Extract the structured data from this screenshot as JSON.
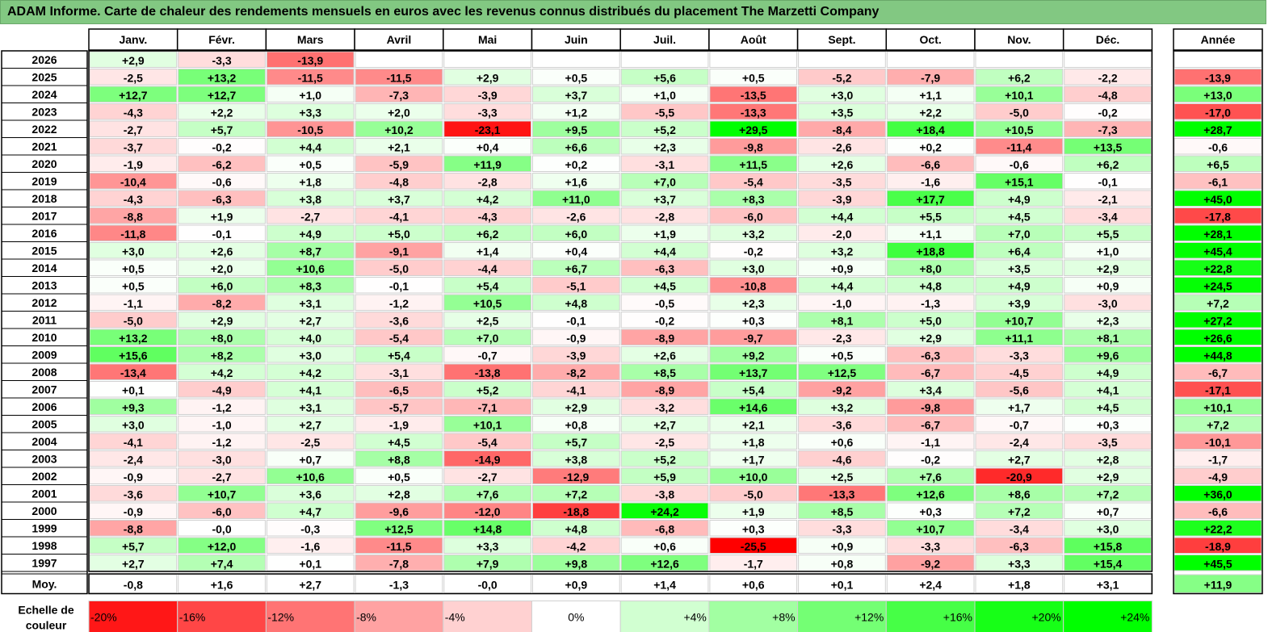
{
  "title": "ADAM Informe. Carte de chaleur des rendements mensuels en euros avec les revenus connus distribués du placement The Marzetti Company",
  "chart_data": {
    "type": "heatmap",
    "columns": [
      "Janv.",
      "Févr.",
      "Mars",
      "Avril",
      "Mai",
      "Juin",
      "Juil.",
      "Août",
      "Sept.",
      "Oct.",
      "Nov.",
      "Déc."
    ],
    "year_column": "Année",
    "rows": [
      {
        "year": "2026",
        "months": [
          "+2,9",
          "-3,3",
          "-13,9",
          "",
          "",
          "",
          "",
          "",
          "",
          "",
          "",
          ""
        ],
        "total": ""
      },
      {
        "year": "2025",
        "months": [
          "-2,5",
          "+13,2",
          "-11,5",
          "-11,5",
          "+2,9",
          "+0,5",
          "+5,6",
          "+0,5",
          "-5,2",
          "-7,9",
          "+6,2",
          "-2,2"
        ],
        "total": "-13,9"
      },
      {
        "year": "2024",
        "months": [
          "+12,7",
          "+12,7",
          "+1,0",
          "-7,3",
          "-3,9",
          "+3,7",
          "+1,0",
          "-13,5",
          "+3,0",
          "+1,1",
          "+10,1",
          "-4,8"
        ],
        "total": "+13,0"
      },
      {
        "year": "2023",
        "months": [
          "-4,3",
          "+2,2",
          "+3,3",
          "+2,0",
          "-3,3",
          "+1,2",
          "-5,5",
          "-13,3",
          "+3,5",
          "+2,2",
          "-5,0",
          "-0,2"
        ],
        "total": "-17,0"
      },
      {
        "year": "2022",
        "months": [
          "-2,7",
          "+5,7",
          "-10,5",
          "+10,2",
          "-23,1",
          "+9,5",
          "+5,2",
          "+29,5",
          "-8,4",
          "+18,4",
          "+10,5",
          "-7,3"
        ],
        "total": "+28,7"
      },
      {
        "year": "2021",
        "months": [
          "-3,7",
          "-0,2",
          "+4,4",
          "+2,1",
          "+0,4",
          "+6,6",
          "+2,3",
          "-9,8",
          "-2,6",
          "+0,2",
          "-11,4",
          "+13,5"
        ],
        "total": "-0,6"
      },
      {
        "year": "2020",
        "months": [
          "-1,9",
          "-6,2",
          "+0,5",
          "-5,9",
          "+11,9",
          "+0,2",
          "-3,1",
          "+11,5",
          "+2,6",
          "-6,6",
          "-0,6",
          "+6,2"
        ],
        "total": "+6,5"
      },
      {
        "year": "2019",
        "months": [
          "-10,4",
          "-0,6",
          "+1,8",
          "-4,8",
          "-2,8",
          "+1,6",
          "+7,0",
          "-5,4",
          "-3,5",
          "-1,6",
          "+15,1",
          "-0,1"
        ],
        "total": "-6,1"
      },
      {
        "year": "2018",
        "months": [
          "-4,3",
          "-6,3",
          "+3,8",
          "+3,7",
          "+4,2",
          "+11,0",
          "+3,7",
          "+8,3",
          "-3,9",
          "+17,7",
          "+4,9",
          "-2,1"
        ],
        "total": "+45,0"
      },
      {
        "year": "2017",
        "months": [
          "-8,8",
          "+1,9",
          "-2,7",
          "-4,1",
          "-4,3",
          "-2,6",
          "-2,8",
          "-6,0",
          "+4,4",
          "+5,5",
          "+4,5",
          "-3,4"
        ],
        "total": "-17,8"
      },
      {
        "year": "2016",
        "months": [
          "-11,8",
          "-0,1",
          "+4,9",
          "+5,0",
          "+6,2",
          "+6,0",
          "+1,9",
          "+3,2",
          "-2,0",
          "+1,1",
          "+7,0",
          "+5,5"
        ],
        "total": "+28,1"
      },
      {
        "year": "2015",
        "months": [
          "+3,0",
          "+2,6",
          "+8,7",
          "-9,1",
          "+1,4",
          "+0,4",
          "+4,4",
          "-0,2",
          "+3,2",
          "+18,8",
          "+6,4",
          "+1,0"
        ],
        "total": "+45,4"
      },
      {
        "year": "2014",
        "months": [
          "+0,5",
          "+2,0",
          "+10,6",
          "-5,0",
          "-4,4",
          "+6,7",
          "-6,3",
          "+3,0",
          "+0,9",
          "+8,0",
          "+3,5",
          "+2,9"
        ],
        "total": "+22,8"
      },
      {
        "year": "2013",
        "months": [
          "+0,5",
          "+6,0",
          "+8,3",
          "-0,1",
          "+5,4",
          "-5,1",
          "+4,5",
          "-10,8",
          "+4,4",
          "+4,8",
          "+4,9",
          "+0,9"
        ],
        "total": "+24,5"
      },
      {
        "year": "2012",
        "months": [
          "-1,1",
          "-8,2",
          "+3,1",
          "-1,2",
          "+10,5",
          "+4,8",
          "-0,5",
          "+2,3",
          "-1,0",
          "-1,3",
          "+3,9",
          "-3,0"
        ],
        "total": "+7,2"
      },
      {
        "year": "2011",
        "months": [
          "-5,0",
          "+2,9",
          "+2,7",
          "-3,6",
          "+2,5",
          "-0,1",
          "-0,2",
          "+0,3",
          "+8,1",
          "+5,0",
          "+10,7",
          "+2,3"
        ],
        "total": "+27,2"
      },
      {
        "year": "2010",
        "months": [
          "+13,2",
          "+8,0",
          "+4,0",
          "-5,4",
          "+7,0",
          "-0,9",
          "-8,9",
          "-9,7",
          "-2,3",
          "+2,9",
          "+11,1",
          "+8,1"
        ],
        "total": "+26,6"
      },
      {
        "year": "2009",
        "months": [
          "+15,6",
          "+8,2",
          "+3,0",
          "+5,4",
          "-0,7",
          "-3,9",
          "+2,6",
          "+9,2",
          "+0,5",
          "-6,3",
          "-3,3",
          "+9,6"
        ],
        "total": "+44,8"
      },
      {
        "year": "2008",
        "months": [
          "-13,4",
          "+4,2",
          "+4,2",
          "-3,1",
          "-13,8",
          "-8,2",
          "+8,5",
          "+13,7",
          "+12,5",
          "-6,7",
          "-4,5",
          "+4,9"
        ],
        "total": "-6,7"
      },
      {
        "year": "2007",
        "months": [
          "+0,1",
          "-4,9",
          "+4,1",
          "-6,5",
          "+5,2",
          "-4,1",
          "-8,9",
          "+5,4",
          "-9,2",
          "+3,4",
          "-5,6",
          "+4,1"
        ],
        "total": "-17,1"
      },
      {
        "year": "2006",
        "months": [
          "+9,3",
          "-1,2",
          "+3,1",
          "-5,7",
          "-7,1",
          "+2,9",
          "-3,2",
          "+14,6",
          "+3,2",
          "-9,8",
          "+1,7",
          "+4,5"
        ],
        "total": "+10,1"
      },
      {
        "year": "2005",
        "months": [
          "+3,0",
          "-1,0",
          "+2,7",
          "-1,9",
          "+10,1",
          "+0,8",
          "+2,7",
          "+2,1",
          "-3,6",
          "-6,7",
          "-0,7",
          "+0,3"
        ],
        "total": "+7,2"
      },
      {
        "year": "2004",
        "months": [
          "-4,1",
          "-1,2",
          "-2,5",
          "+4,5",
          "-5,4",
          "+5,7",
          "-2,5",
          "+1,8",
          "+0,6",
          "-1,1",
          "-2,4",
          "-3,5"
        ],
        "total": "-10,1"
      },
      {
        "year": "2003",
        "months": [
          "-2,4",
          "-3,0",
          "+0,7",
          "+8,8",
          "-14,9",
          "+3,8",
          "+5,2",
          "+1,7",
          "-4,6",
          "-0,2",
          "+2,7",
          "+2,8"
        ],
        "total": "-1,7"
      },
      {
        "year": "2002",
        "months": [
          "-0,9",
          "-2,7",
          "+10,6",
          "+0,5",
          "-2,7",
          "-12,9",
          "+5,9",
          "+10,0",
          "+2,5",
          "+7,6",
          "-20,9",
          "+2,9"
        ],
        "total": "-4,9"
      },
      {
        "year": "2001",
        "months": [
          "-3,6",
          "+10,7",
          "+3,6",
          "+2,8",
          "+7,6",
          "+7,2",
          "-3,8",
          "-5,0",
          "-13,3",
          "+12,6",
          "+8,6",
          "+7,2"
        ],
        "total": "+36,0"
      },
      {
        "year": "2000",
        "months": [
          "-0,9",
          "-6,0",
          "+4,7",
          "-9,6",
          "-12,0",
          "-18,8",
          "+24,2",
          "+1,9",
          "+8,5",
          "+0,3",
          "+7,2",
          "+0,7"
        ],
        "total": "-6,6"
      },
      {
        "year": "1999",
        "months": [
          "-8,8",
          "-0,0",
          "-0,3",
          "+12,5",
          "+14,8",
          "+4,8",
          "-6,8",
          "+0,3",
          "-3,3",
          "+10,7",
          "-3,4",
          "+3,0"
        ],
        "total": "+22,2"
      },
      {
        "year": "1998",
        "months": [
          "+5,7",
          "+12,0",
          "-1,6",
          "-11,5",
          "+3,3",
          "-4,2",
          "+0,6",
          "-25,5",
          "+0,9",
          "-3,3",
          "-6,3",
          "+15,8"
        ],
        "total": "-18,9"
      },
      {
        "year": "1997",
        "months": [
          "+2,7",
          "+7,4",
          "+0,1",
          "-7,8",
          "+7,9",
          "+9,8",
          "+12,6",
          "-1,7",
          "+0,8",
          "-9,2",
          "+3,3",
          "+15,4"
        ],
        "total": "+45,5"
      }
    ],
    "average": {
      "label": "Moy.",
      "months": [
        "-0,8",
        "+1,6",
        "+2,7",
        "-1,3",
        "-0,0",
        "+0,9",
        "+1,4",
        "+0,6",
        "+0,1",
        "+2,4",
        "+1,8",
        "+3,1"
      ],
      "total": "+11,9"
    },
    "scale": {
      "label": "Echelle de couleur",
      "stops": [
        "-20%",
        "-16%",
        "-12%",
        "-8%",
        "-4%",
        "0%",
        "+4%",
        "+8%",
        "+12%",
        "+16%",
        "+20%",
        "+24%"
      ]
    }
  }
}
